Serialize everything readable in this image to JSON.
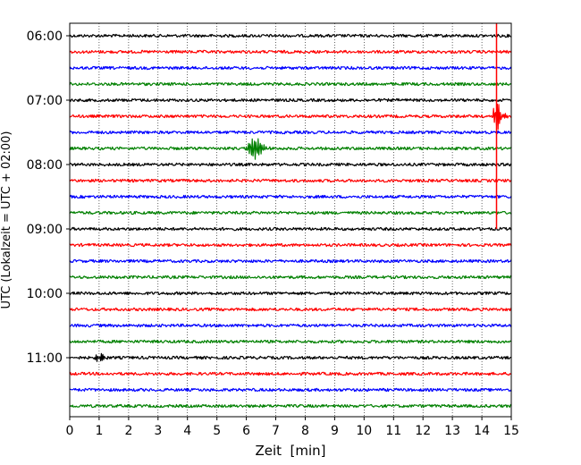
{
  "chart_data": {
    "type": "line",
    "title": "",
    "xlabel": "Zeit  [min]",
    "ylabel": "UTC (Lokalzeit = UTC + 02:00)",
    "xlim": [
      0,
      15
    ],
    "x_ticks": [
      0,
      1,
      2,
      3,
      4,
      5,
      6,
      7,
      8,
      9,
      10,
      11,
      12,
      13,
      14,
      15
    ],
    "grid": "vertical-dotted",
    "row_minutes": 15,
    "first_row_time": "06:00",
    "y_ticks": [
      "06:00",
      "07:00",
      "08:00",
      "09:00",
      "10:00",
      "11:00"
    ],
    "colors": [
      "#000000",
      "#ff0000",
      "#0000ff",
      "#008000"
    ],
    "traces": [
      {
        "start": "06:00",
        "color": "#000000"
      },
      {
        "start": "06:15",
        "color": "#ff0000"
      },
      {
        "start": "06:30",
        "color": "#0000ff"
      },
      {
        "start": "06:45",
        "color": "#008000"
      },
      {
        "start": "07:00",
        "color": "#000000"
      },
      {
        "start": "07:15",
        "color": "#ff0000"
      },
      {
        "start": "07:30",
        "color": "#0000ff"
      },
      {
        "start": "07:45",
        "color": "#008000"
      },
      {
        "start": "08:00",
        "color": "#000000"
      },
      {
        "start": "08:15",
        "color": "#ff0000"
      },
      {
        "start": "08:30",
        "color": "#0000ff"
      },
      {
        "start": "08:45",
        "color": "#008000"
      },
      {
        "start": "09:00",
        "color": "#000000"
      },
      {
        "start": "09:15",
        "color": "#ff0000"
      },
      {
        "start": "09:30",
        "color": "#0000ff"
      },
      {
        "start": "09:45",
        "color": "#008000"
      },
      {
        "start": "10:00",
        "color": "#000000"
      },
      {
        "start": "10:15",
        "color": "#ff0000"
      },
      {
        "start": "10:30",
        "color": "#0000ff"
      },
      {
        "start": "10:45",
        "color": "#008000"
      },
      {
        "start": "11:00",
        "color": "#000000"
      },
      {
        "start": "11:15",
        "color": "#ff0000"
      },
      {
        "start": "11:30",
        "color": "#0000ff"
      },
      {
        "start": "11:45",
        "color": "#008000"
      }
    ],
    "events": [
      {
        "trace": "07:45",
        "minute": 6.3,
        "kind": "wave-packet"
      },
      {
        "trace": "07:15",
        "minute": 14.5,
        "kind": "large-spike"
      },
      {
        "trace": "11:00",
        "minute": 1.0,
        "kind": "small-burst"
      }
    ],
    "marker_line": {
      "minute": 14.5,
      "from": "06:00",
      "to": "09:00",
      "color": "#ff0000"
    }
  }
}
